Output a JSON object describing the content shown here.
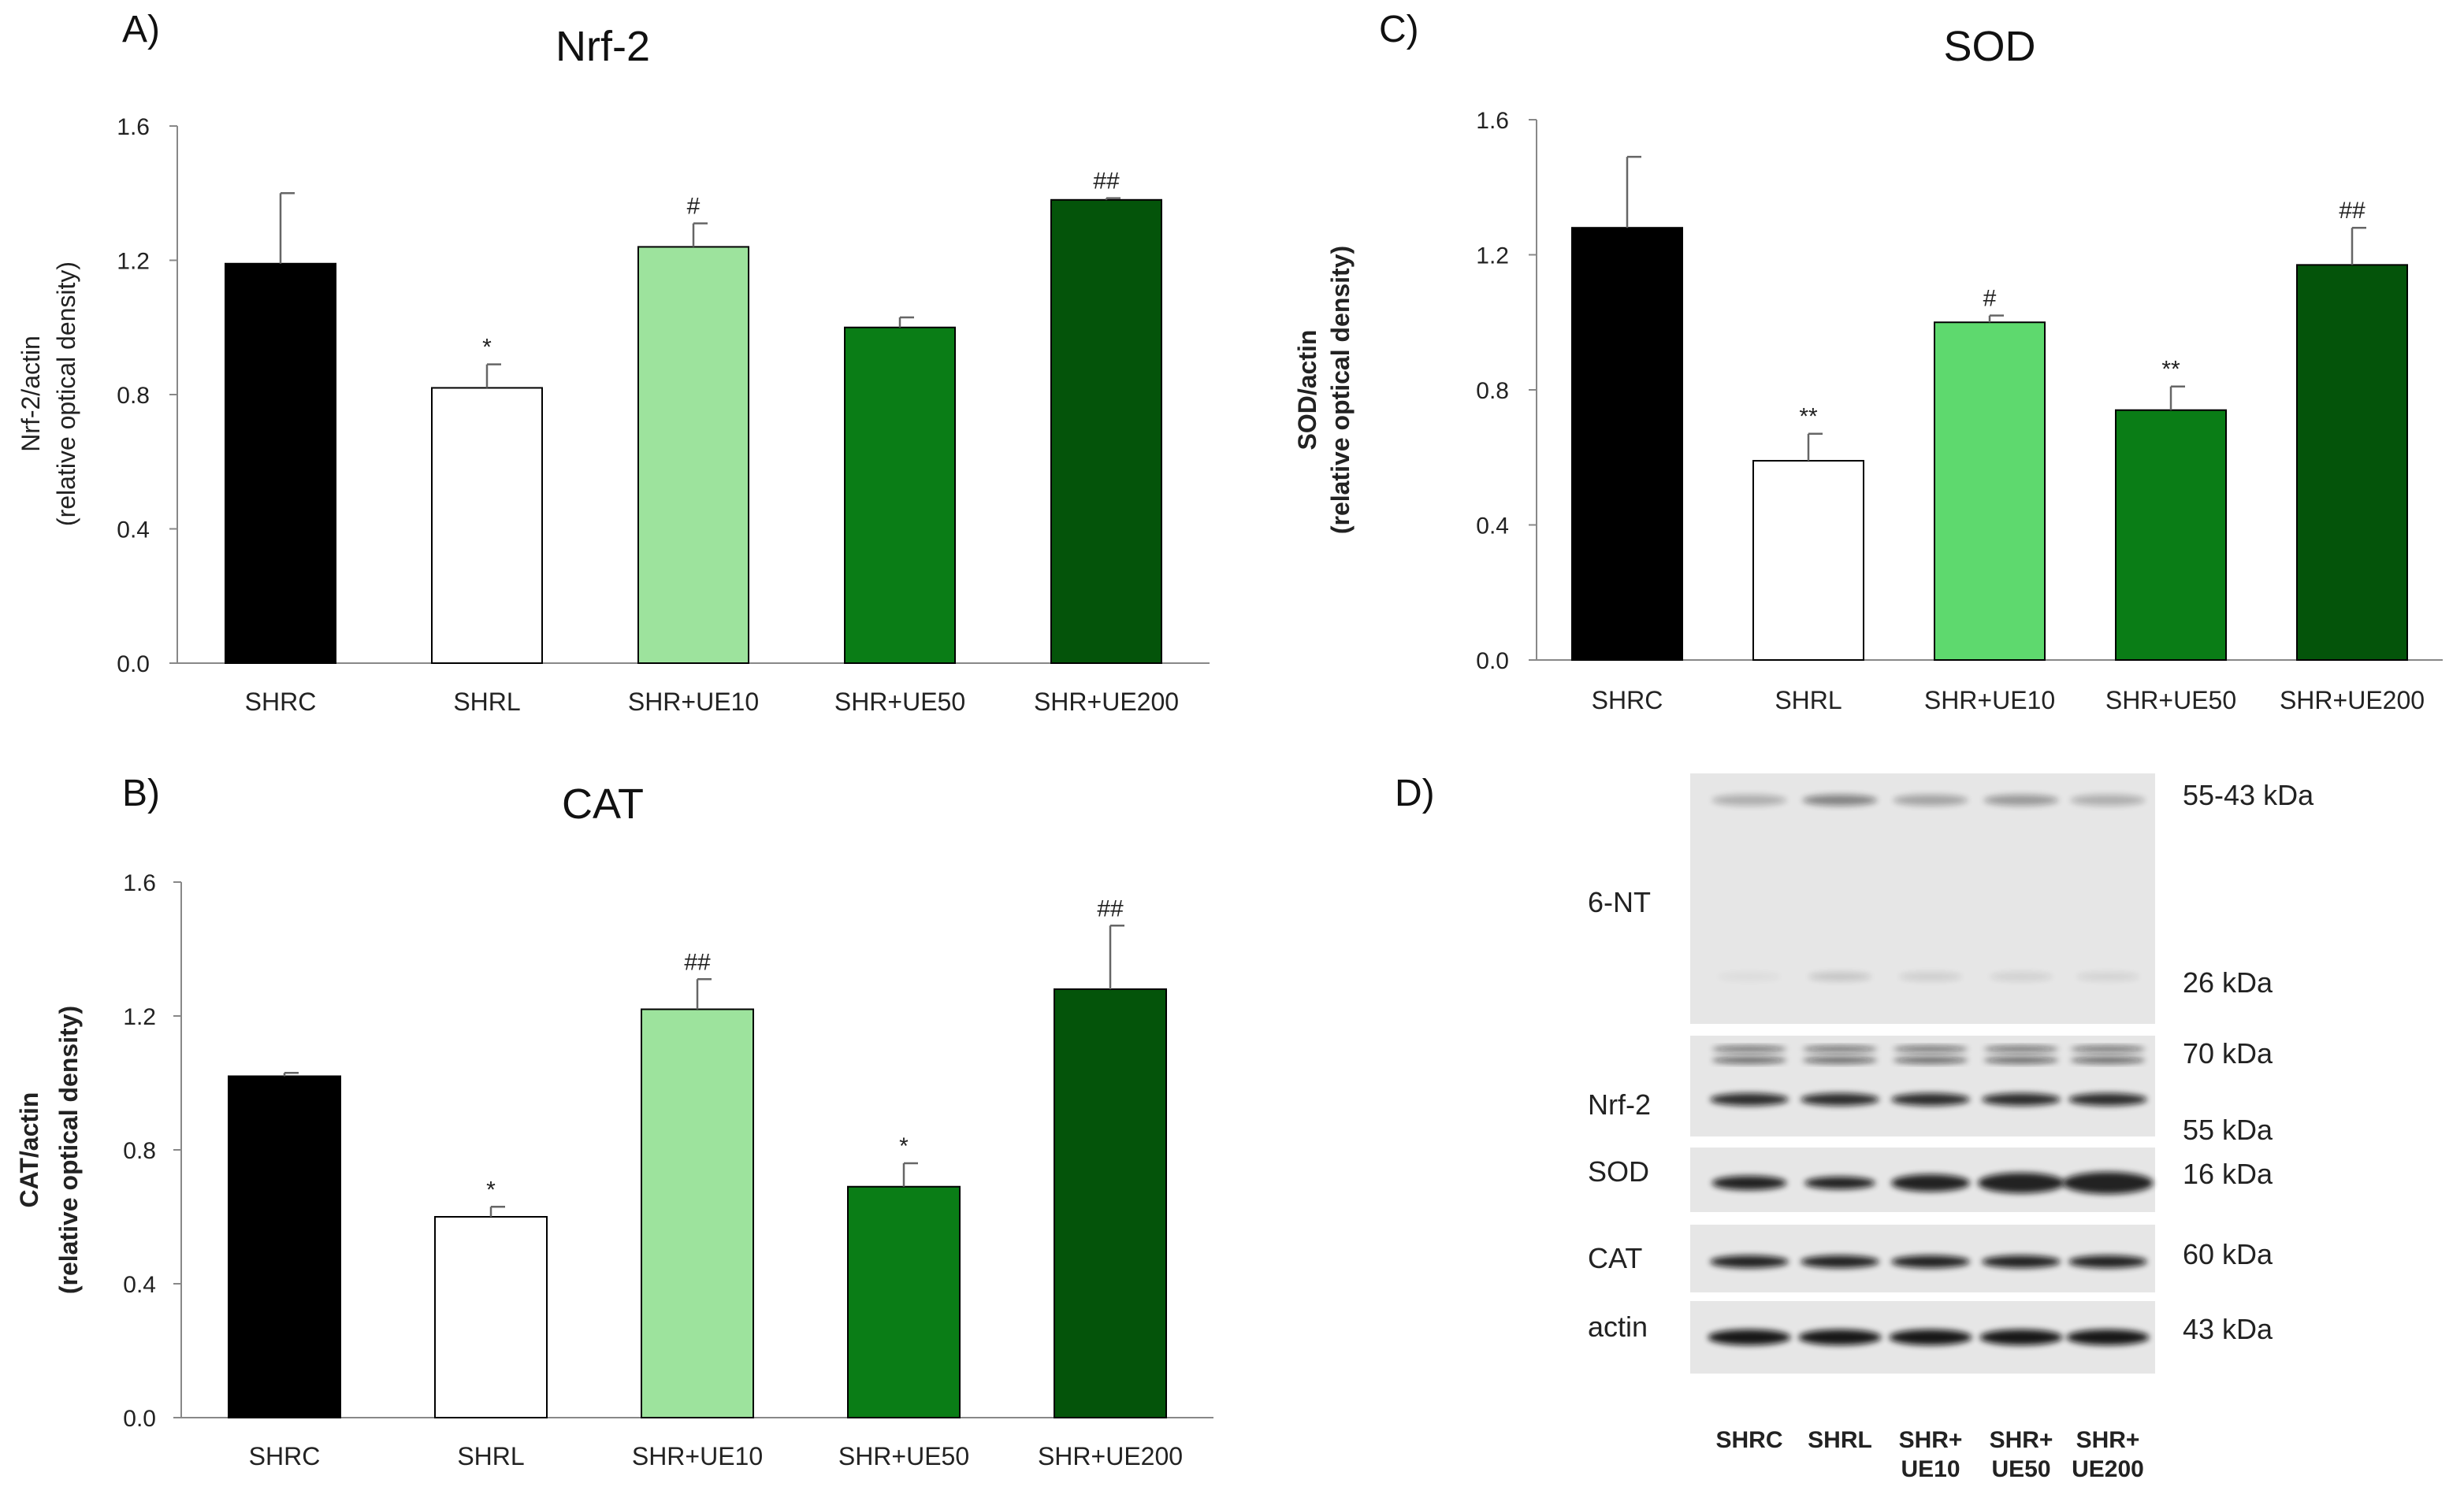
{
  "panels": [
    {
      "letter": "A)",
      "chart_data": {
        "type": "bar",
        "title": "Nrf-2",
        "ylabel_line1": "Nrf-2/actin",
        "ylabel_line2": "(relative optical density)",
        "ylabel_bold": false,
        "categories": [
          "SHRC",
          "SHRL",
          "SHR+UE10",
          "SHR+UE50",
          "SHR+UE200"
        ],
        "values": [
          1.19,
          0.82,
          1.24,
          1.0,
          1.38
        ],
        "errors": [
          0.21,
          0.07,
          0.07,
          0.03,
          0.005
        ],
        "annotations": [
          "",
          "*",
          "#",
          "",
          "##"
        ],
        "ylim": [
          0,
          1.6
        ],
        "yticks": [
          "0.0",
          "0.4",
          "0.8",
          "1.2",
          "1.6"
        ],
        "colors": [
          "#000000",
          "#ffffff",
          "#9de39d",
          "#0a7d16",
          "#04540a"
        ]
      }
    },
    {
      "letter": "B)",
      "chart_data": {
        "type": "bar",
        "title": "CAT",
        "ylabel_line1": "CAT/actin",
        "ylabel_line2": "(relative optical density)",
        "ylabel_bold": true,
        "categories": [
          "SHRC",
          "SHRL",
          "SHR+UE10",
          "SHR+UE50",
          "SHR+UE200"
        ],
        "values": [
          1.02,
          0.6,
          1.22,
          0.69,
          1.28
        ],
        "errors": [
          0.01,
          0.03,
          0.09,
          0.07,
          0.19
        ],
        "annotations": [
          "",
          "*",
          "##",
          "*",
          "##"
        ],
        "ylim": [
          0,
          1.6
        ],
        "yticks": [
          "0.0",
          "0.4",
          "0.8",
          "1.2",
          "1.6"
        ],
        "colors": [
          "#000000",
          "#ffffff",
          "#9de39d",
          "#0a7d16",
          "#04540a"
        ]
      }
    },
    {
      "letter": "C)",
      "chart_data": {
        "type": "bar",
        "title": "SOD",
        "ylabel_line1": "SOD/actin",
        "ylabel_line2": "(relative optical density)",
        "ylabel_bold": true,
        "categories": [
          "SHRC",
          "SHRL",
          "SHR+UE10",
          "SHR+UE50",
          "SHR+UE200"
        ],
        "values": [
          1.28,
          0.59,
          1.0,
          0.74,
          1.17
        ],
        "errors": [
          0.21,
          0.08,
          0.02,
          0.07,
          0.11
        ],
        "annotations": [
          "",
          "**",
          "#",
          "**",
          "##"
        ],
        "ylim": [
          0,
          1.6
        ],
        "yticks": [
          "0.0",
          "0.4",
          "0.8",
          "1.2",
          "1.6"
        ],
        "colors": [
          "#000000",
          "#ffffff",
          "#5ed96e",
          "#0a7d16",
          "#04540a"
        ]
      }
    }
  ],
  "blot": {
    "letter": "D)",
    "row_labels": [
      "6-NT",
      "Nrf-2",
      "SOD",
      "CAT",
      "actin"
    ],
    "kda_labels": [
      "55-43 kDa",
      "26 kDa",
      "70 kDa",
      "55 kDa",
      "16 kDa",
      "60 kDa",
      "43 kDa"
    ],
    "lane_labels": [
      {
        "line1": "SHRC",
        "line2": ""
      },
      {
        "line1": "SHRL",
        "line2": ""
      },
      {
        "line1": "SHR+",
        "line2": "UE10"
      },
      {
        "line1": "SHR+",
        "line2": "UE50"
      },
      {
        "line1": "SHR+",
        "line2": "UE200"
      }
    ]
  }
}
